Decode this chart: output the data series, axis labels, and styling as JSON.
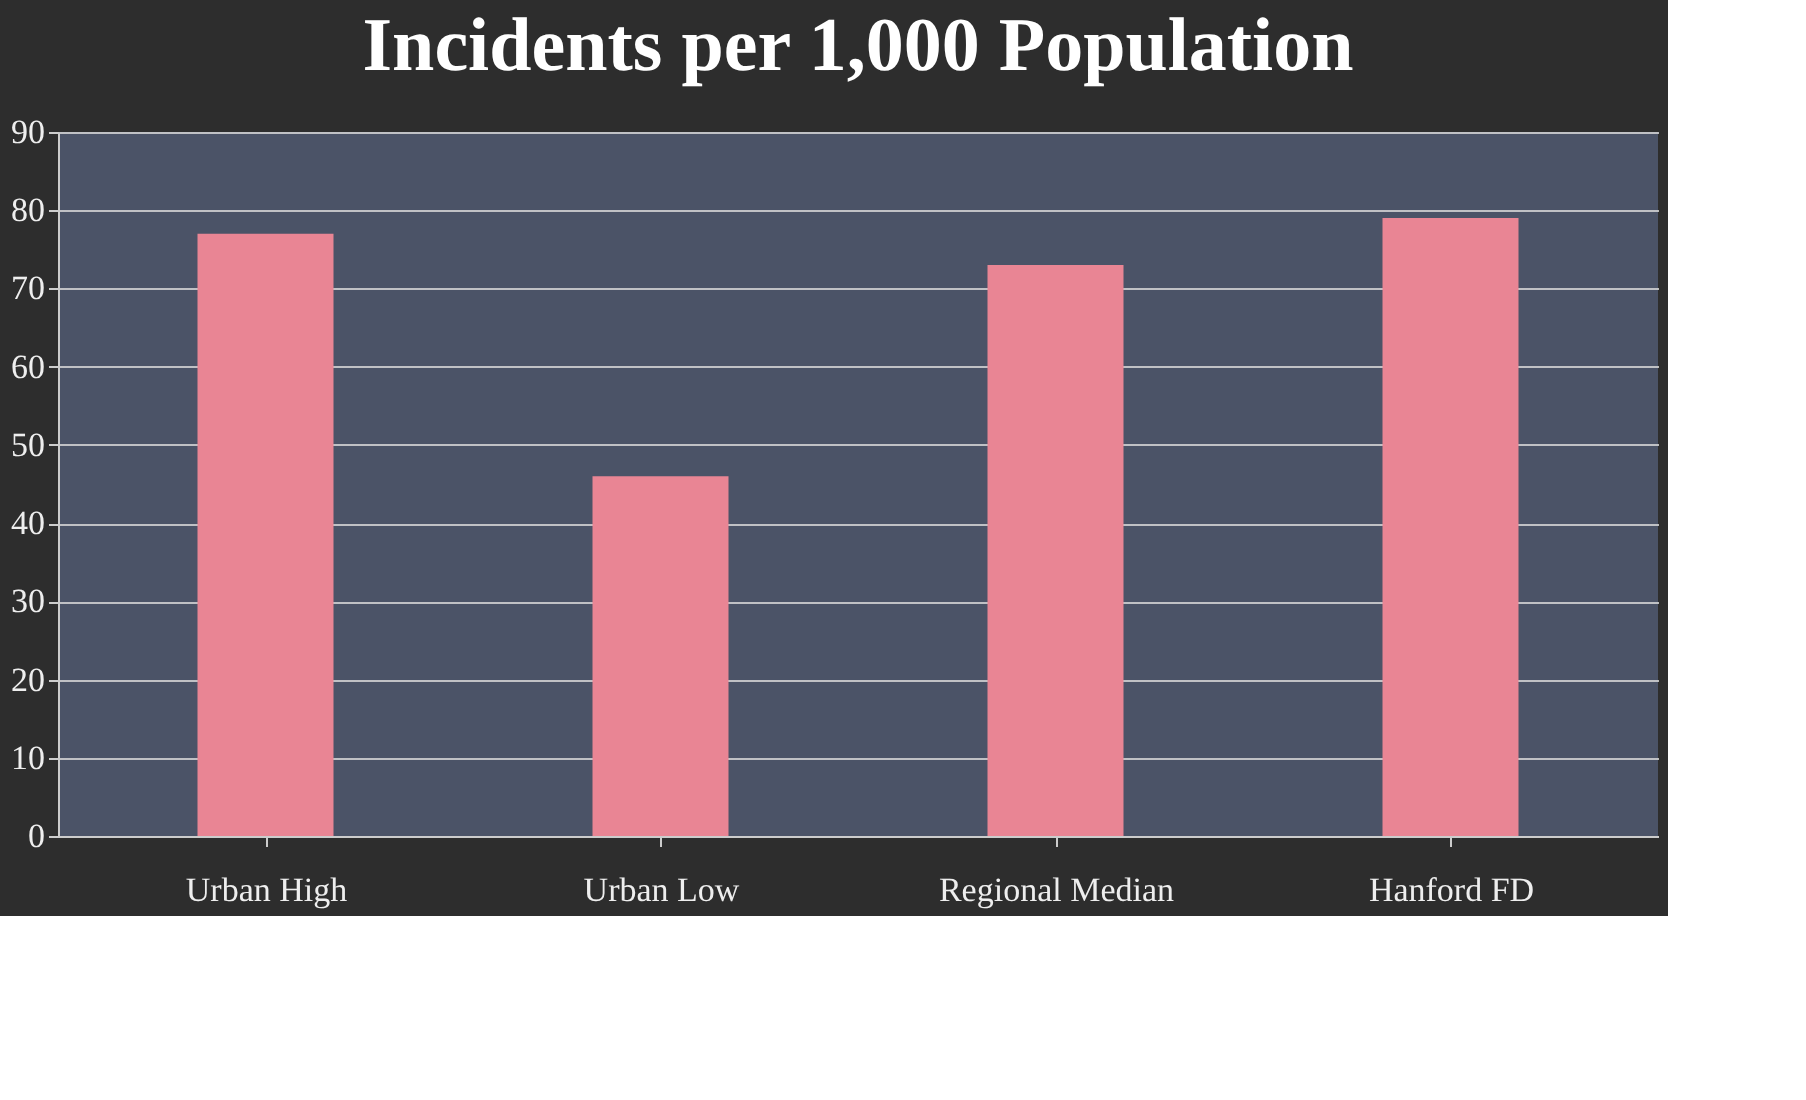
{
  "chart_data": {
    "type": "bar",
    "title": "Incidents per 1,000 Population",
    "categories": [
      "Urban High",
      "Urban Low",
      "Regional Median",
      "Hanford FD"
    ],
    "values": [
      77,
      46,
      73,
      79
    ],
    "color": "#e98594",
    "ylim": [
      0,
      90
    ],
    "yticks": [
      0,
      10,
      20,
      30,
      40,
      50,
      60,
      70,
      80,
      90
    ],
    "grid": "y"
  }
}
